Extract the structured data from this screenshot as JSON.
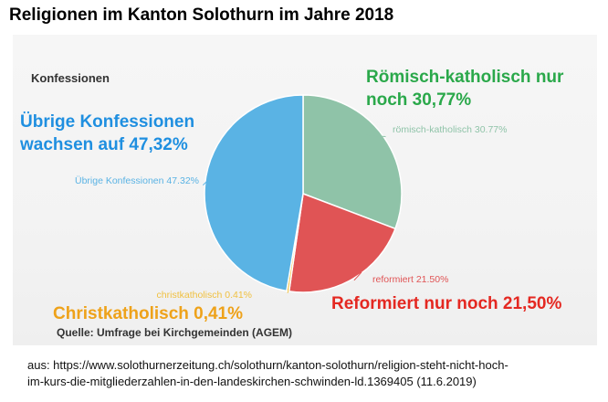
{
  "title": "Religionen im Kanton Solothurn im Jahre 2018",
  "chart_data": {
    "type": "pie",
    "title": "Konfessionen",
    "slices": [
      {
        "name": "römisch-katholisch",
        "value": 30.77,
        "label": "römisch-katholisch 30.77%",
        "color": "#8fc3a8"
      },
      {
        "name": "reformiert",
        "value": 21.5,
        "label": "reformiert 21.50%",
        "color": "#e05455"
      },
      {
        "name": "christkatholisch",
        "value": 0.41,
        "label": "christkatholisch 0.41%",
        "color": "#f0c040"
      },
      {
        "name": "Übrige Konfessionen",
        "value": 47.32,
        "label": "Übrige Konfessionen 47.32%",
        "color": "#5ab3e4"
      }
    ],
    "source": "Quelle: Umfrage bei Kirchgemeinden (AGEM)"
  },
  "annotations": {
    "roemisch_line1": "Römisch-katholisch nur",
    "roemisch_line2": "noch 30,77%",
    "uebrige_line1": "Übrige Konfessionen",
    "uebrige_line2": "wachsen auf 47,32%",
    "reformiert": "Reformiert nur noch 21,50%",
    "christkatholisch": "Christkatholisch 0,41%"
  },
  "caption": {
    "line1": "aus: https://www.solothurnerzeitung.ch/solothurn/kanton-solothurn/religion-steht-nicht-hoch-",
    "line2": "im-kurs-die-mitgliederzahlen-in-den-landeskirchen-schwinden-ld.1369405 (11.6.2019)"
  }
}
